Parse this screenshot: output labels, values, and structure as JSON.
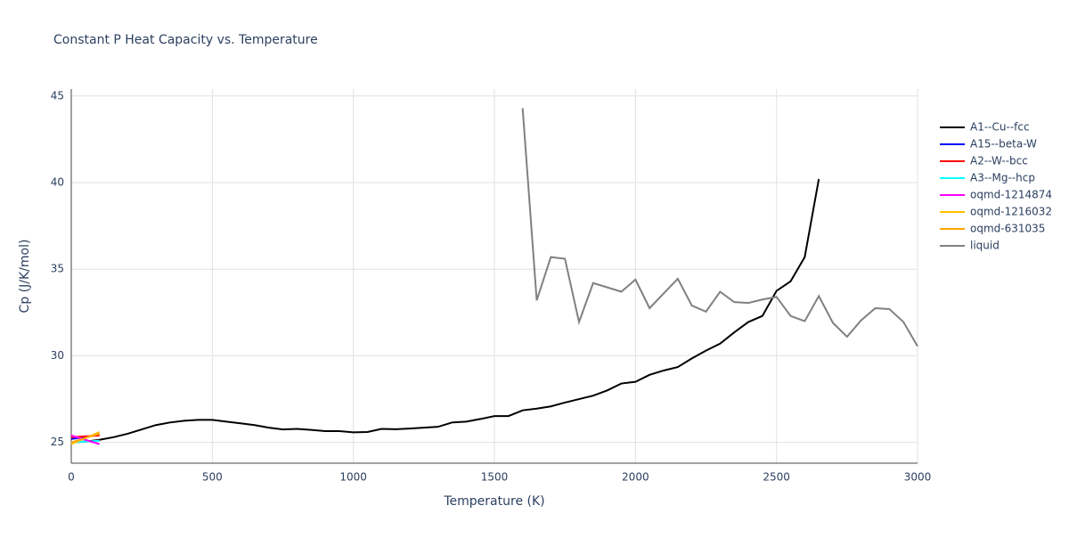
{
  "chart_data": {
    "type": "line",
    "title": "Constant P Heat Capacity vs. Temperature",
    "x_label": "Temperature (K)",
    "y_label": "Cp (J/K/mol)",
    "xlim": [
      0,
      3000
    ],
    "xticks": [
      0,
      500,
      1000,
      1500,
      2000,
      2500,
      3000
    ],
    "ylim": [
      23.8,
      45.4
    ],
    "yticks": [
      25,
      30,
      35,
      40,
      45
    ],
    "grid": true,
    "legend": "right",
    "series": [
      {
        "name": "A1--Cu--fcc",
        "color": "#000000",
        "x": [
          0,
          50,
          100,
          150,
          200,
          250,
          300,
          350,
          400,
          450,
          500,
          550,
          600,
          650,
          700,
          750,
          800,
          850,
          900,
          950,
          1000,
          1050,
          1100,
          1150,
          1200,
          1250,
          1300,
          1350,
          1400,
          1450,
          1500,
          1550,
          1600,
          1650,
          1700,
          1750,
          1800,
          1850,
          1900,
          1950,
          2000,
          2050,
          2100,
          2150,
          2200,
          2250,
          2300,
          2350,
          2400,
          2450,
          2500,
          2550,
          2600,
          2650
        ],
        "values": [
          25.0,
          25.05,
          25.15,
          25.3,
          25.5,
          25.75,
          26.0,
          26.15,
          26.25,
          26.3,
          26.3,
          26.2,
          26.1,
          26.0,
          25.85,
          25.75,
          25.78,
          25.72,
          25.65,
          25.65,
          25.58,
          25.6,
          25.78,
          25.76,
          25.8,
          25.85,
          25.9,
          26.15,
          26.2,
          26.35,
          26.52,
          26.52,
          26.85,
          26.95,
          27.08,
          27.3,
          27.5,
          27.7,
          28.0,
          28.4,
          28.5,
          28.9,
          29.15,
          29.35,
          29.85,
          30.3,
          30.7,
          31.35,
          31.95,
          32.3,
          33.75,
          34.3,
          35.7,
          40.2
        ]
      },
      {
        "name": "A15--beta-W",
        "color": "#0000ff",
        "x": [
          0,
          50,
          100
        ],
        "values": [
          25.2,
          25.3,
          25.5
        ]
      },
      {
        "name": "A2--W--bcc",
        "color": "#ff0000",
        "x": [
          0,
          50,
          100
        ],
        "values": [
          25.3,
          25.35,
          25.4
        ]
      },
      {
        "name": "A3--Mg--hcp",
        "color": "#00ffff",
        "x": [
          0,
          50,
          100
        ],
        "values": [
          25.0,
          25.05,
          25.1
        ]
      },
      {
        "name": "oqmd-1214874",
        "color": "#ff00ff",
        "x": [
          0,
          50,
          100
        ],
        "values": [
          25.4,
          25.15,
          24.9
        ]
      },
      {
        "name": "oqmd-1216032",
        "color": "#ffc000",
        "x": [
          0,
          50,
          100
        ],
        "values": [
          24.9,
          25.25,
          25.6
        ]
      },
      {
        "name": "oqmd-631035",
        "color": "#ffa500",
        "x": [
          0,
          50,
          100
        ],
        "values": [
          25.0,
          25.25,
          25.5
        ]
      },
      {
        "name": "liquid",
        "color": "#808080",
        "x": [
          1600,
          1650,
          1700,
          1750,
          1800,
          1850,
          1900,
          1950,
          2000,
          2050,
          2100,
          2150,
          2200,
          2250,
          2300,
          2350,
          2400,
          2450,
          2500,
          2550,
          2600,
          2650,
          2700,
          2750,
          2800,
          2850,
          2900,
          2950,
          3000
        ],
        "values": [
          44.3,
          33.2,
          35.7,
          35.6,
          31.95,
          34.2,
          33.95,
          33.7,
          34.4,
          32.75,
          33.6,
          34.45,
          32.9,
          32.55,
          33.7,
          33.1,
          33.05,
          33.25,
          33.4,
          32.3,
          32.0,
          33.45,
          31.9,
          31.1,
          32.05,
          32.75,
          32.7,
          31.95,
          30.55
        ]
      }
    ]
  }
}
